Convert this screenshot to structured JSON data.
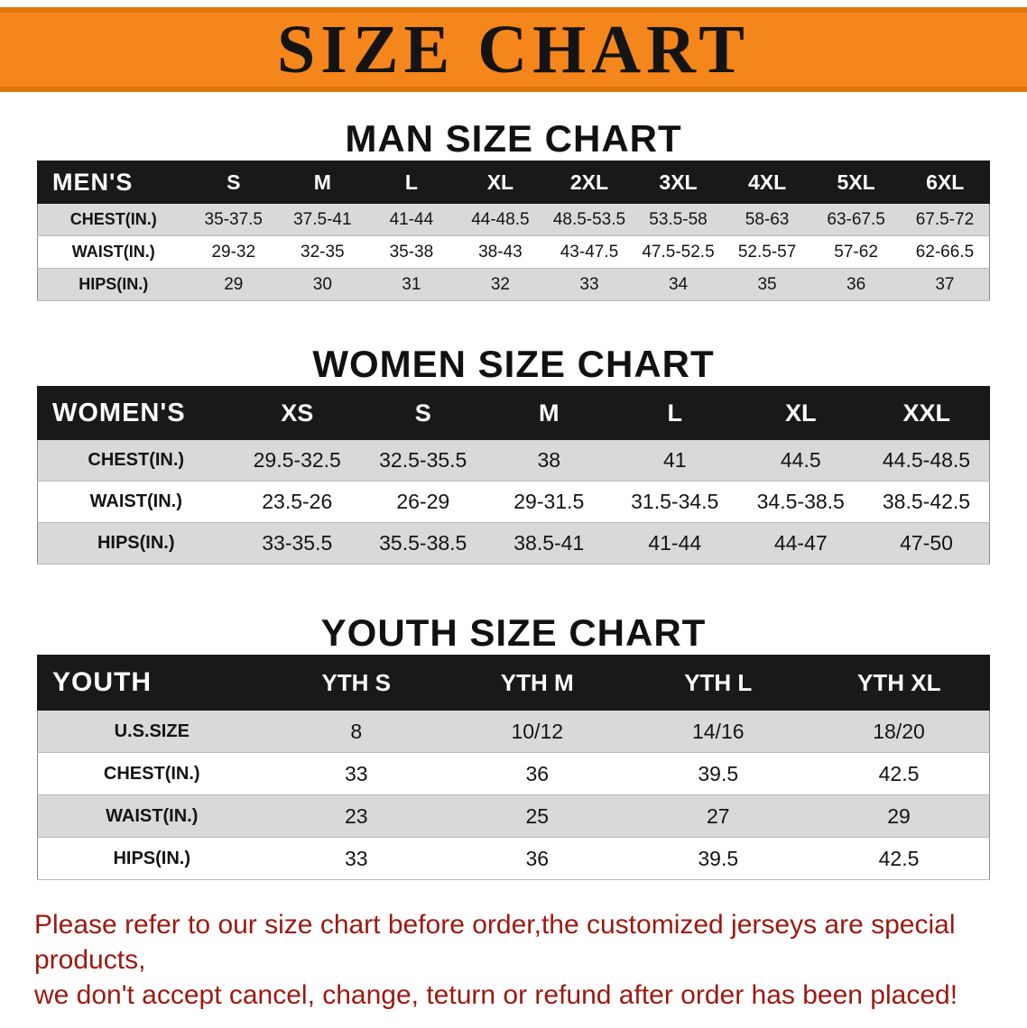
{
  "banner": {
    "title": "SIZE CHART"
  },
  "colors": {
    "banner_bg": "#f5861c",
    "banner_edge": "#e2750a",
    "header_bg": "#191919",
    "row_shade": "#d9d9d9",
    "footer_text": "#9c1910"
  },
  "sections": [
    {
      "heading": "MAN SIZE CHART",
      "table": {
        "label": "MEN'S",
        "columns": [
          "S",
          "M",
          "L",
          "XL",
          "2XL",
          "3XL",
          "4XL",
          "5XL",
          "6XL"
        ],
        "rows": [
          {
            "label": "CHEST(IN.)",
            "values": [
              "35-37.5",
              "37.5-41",
              "41-44",
              "44-48.5",
              "48.5-53.5",
              "53.5-58",
              "58-63",
              "63-67.5",
              "67.5-72"
            ]
          },
          {
            "label": "WAIST(IN.)",
            "values": [
              "29-32",
              "32-35",
              "35-38",
              "38-43",
              "43-47.5",
              "47.5-52.5",
              "52.5-57",
              "57-62",
              "62-66.5"
            ]
          },
          {
            "label": "HIPS(IN.)",
            "values": [
              "29",
              "30",
              "31",
              "32",
              "33",
              "34",
              "35",
              "36",
              "37"
            ]
          }
        ]
      }
    },
    {
      "heading": "WOMEN SIZE CHART",
      "table": {
        "label": "WOMEN'S",
        "columns": [
          "XS",
          "S",
          "M",
          "L",
          "XL",
          "XXL"
        ],
        "rows": [
          {
            "label": "CHEST(IN.)",
            "values": [
              "29.5-32.5",
              "32.5-35.5",
              "38",
              "41",
              "44.5",
              "44.5-48.5"
            ]
          },
          {
            "label": "WAIST(IN.)",
            "values": [
              "23.5-26",
              "26-29",
              "29-31.5",
              "31.5-34.5",
              "34.5-38.5",
              "38.5-42.5"
            ]
          },
          {
            "label": "HIPS(IN.)",
            "values": [
              "33-35.5",
              "35.5-38.5",
              "38.5-41",
              "41-44",
              "44-47",
              "47-50"
            ]
          }
        ]
      }
    },
    {
      "heading": "YOUTH SIZE CHART",
      "table": {
        "label": "YOUTH",
        "columns": [
          "YTH S",
          "YTH M",
          "YTH L",
          "YTH XL"
        ],
        "rows": [
          {
            "label": "U.S.SIZE",
            "values": [
              "8",
              "10/12",
              "14/16",
              "18/20"
            ]
          },
          {
            "label": "CHEST(IN.)",
            "values": [
              "33",
              "36",
              "39.5",
              "42.5"
            ]
          },
          {
            "label": "WAIST(IN.)",
            "values": [
              "23",
              "25",
              "27",
              "29"
            ]
          },
          {
            "label": "HIPS(IN.)",
            "values": [
              "33",
              "36",
              "39.5",
              "42.5"
            ]
          }
        ]
      }
    }
  ],
  "footer": {
    "lines": [
      "Please refer to our size chart before order,the customized jerseys are special products,",
      "we don't accept cancel, change, teturn or refund after order has been placed!"
    ]
  }
}
